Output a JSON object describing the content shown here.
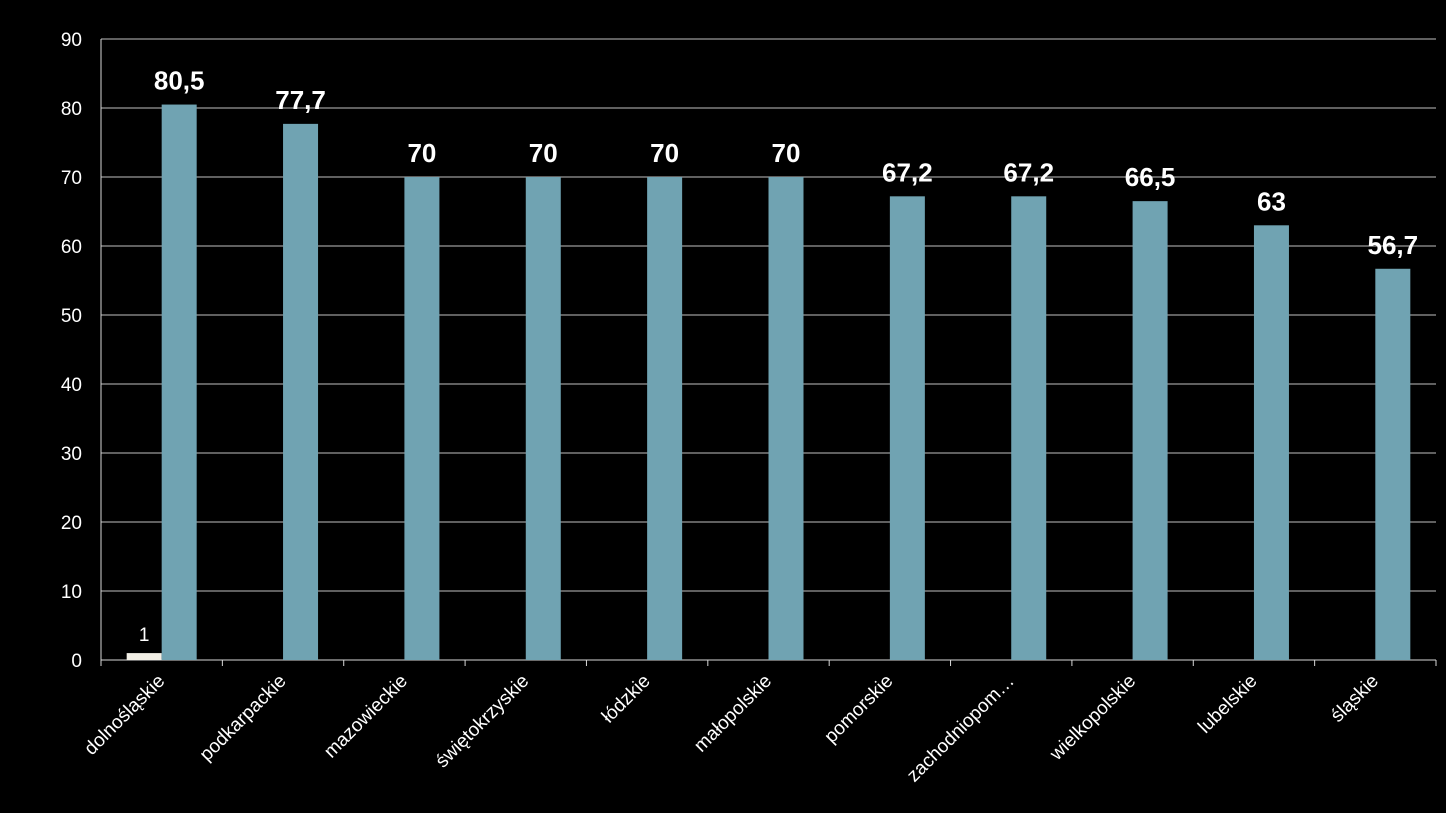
{
  "chart_data": {
    "type": "bar",
    "categories": [
      "dolnośląskie",
      "podkarpackie",
      "mazowieckie",
      "świętokrzyskie",
      "łódzkie",
      "małopolskie",
      "pomorskie",
      "zachodniopom…",
      "wielkopolskie",
      "lubelskie",
      "śląskie"
    ],
    "series": [
      {
        "values": [
          1,
          null,
          null,
          null,
          null,
          null,
          null,
          null,
          null,
          null,
          null
        ],
        "labels": [
          "1",
          "",
          "",
          "",
          "",
          "",
          "",
          "",
          "",
          "",
          ""
        ],
        "color": "#f2efe6"
      },
      {
        "values": [
          80.5,
          77.7,
          70,
          70,
          70,
          70,
          67.2,
          67.2,
          66.5,
          63,
          56.7
        ],
        "labels": [
          "80,5",
          "77,7",
          "70",
          "70",
          "70",
          "70",
          "67,2",
          "67,2",
          "66,5",
          "63",
          "56,7"
        ],
        "color": "#70a3b2"
      }
    ],
    "yticks": [
      0,
      10,
      20,
      30,
      40,
      50,
      60,
      70,
      80,
      90
    ],
    "ylim": [
      0,
      90
    ],
    "grid": true,
    "legend": "none",
    "title": "",
    "xlabel": "",
    "ylabel": ""
  }
}
